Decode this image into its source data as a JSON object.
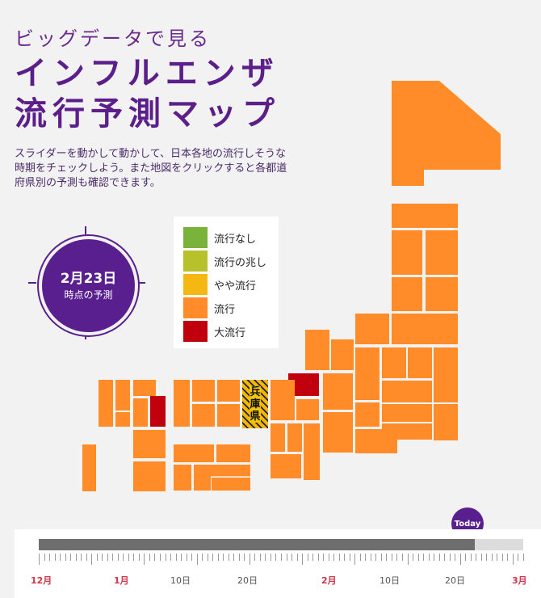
{
  "header": {
    "subtitle": "ビッグデータで見る",
    "title_line1": "インフルエンザ",
    "title_line2": "流行予測マップ"
  },
  "description": "スライダーを動かして動かして、日本各地の流行しそうな時期をチェックしよう。また地図をクリックすると各都道府県別の予測も確認できます。",
  "badge": {
    "date": "2月23日",
    "label": "時点の予測"
  },
  "legend": [
    {
      "label": "流行なし",
      "color": "#7ab33a"
    },
    {
      "label": "流行の兆し",
      "color": "#b7c22a"
    },
    {
      "label": "やや流行",
      "color": "#f5b712"
    },
    {
      "label": "流行",
      "color": "#ff8c28"
    },
    {
      "label": "大流行",
      "color": "#c0000c"
    }
  ],
  "map": {
    "highlighted_prefecture": "兵庫県",
    "highlight_chars": [
      "兵",
      "庫",
      "県"
    ],
    "base_color": "#ff8c28",
    "severe_color": "#c0000c"
  },
  "timeline": {
    "today_label": "Today",
    "progress": 0.9,
    "labels": [
      {
        "text": "12月",
        "month": true
      },
      {
        "text": "1月",
        "month": true
      },
      {
        "text": "10日",
        "month": false
      },
      {
        "text": "20日",
        "month": false
      },
      {
        "text": "2月",
        "month": true
      },
      {
        "text": "10日",
        "month": false
      },
      {
        "text": "20日",
        "month": false
      },
      {
        "text": "3月",
        "month": true
      }
    ]
  }
}
